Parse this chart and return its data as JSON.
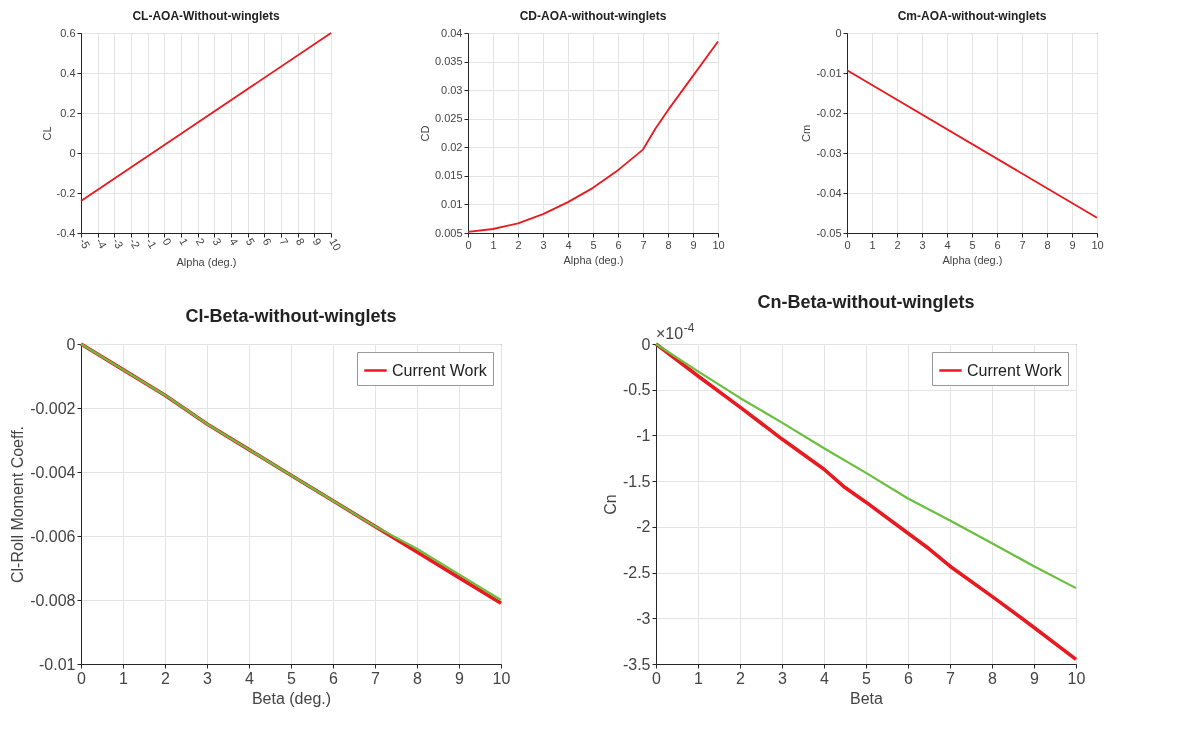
{
  "chart_data": [
    {
      "type": "line",
      "title": "CL-AOA-Without-winglets",
      "xlabel": "Alpha (deg.)",
      "ylabel": "CL",
      "x": [
        -5,
        0,
        10
      ],
      "values": [
        -0.24,
        0.04,
        0.6
      ],
      "color": "#e8191f",
      "xlim": [
        -5,
        10
      ],
      "xticks": [
        -5,
        -4,
        -3,
        -2,
        -1,
        0,
        1,
        2,
        3,
        4,
        5,
        6,
        7,
        8,
        9,
        10
      ],
      "ylim": [
        -0.4,
        0.6
      ],
      "yticks": [
        -0.4,
        -0.2,
        0,
        0.2,
        0.4,
        0.6
      ],
      "grid": true
    },
    {
      "type": "line",
      "title": "CD-AOA-without-winglets",
      "xlabel": "Alpha (deg.)",
      "ylabel": "CD",
      "x": [
        0,
        1,
        2,
        3,
        4,
        5,
        6,
        7,
        7.5,
        8,
        9,
        10
      ],
      "values": [
        0.0052,
        0.0057,
        0.0067,
        0.0083,
        0.0104,
        0.0129,
        0.016,
        0.0196,
        0.0233,
        0.0265,
        0.0325,
        0.0385
      ],
      "color": "#e8191f",
      "xlim": [
        0,
        10
      ],
      "xticks": [
        0,
        1,
        2,
        3,
        4,
        5,
        6,
        7,
        8,
        9,
        10
      ],
      "ylim": [
        0.005,
        0.04
      ],
      "yticks": [
        0.005,
        0.01,
        0.015,
        0.02,
        0.025,
        0.03,
        0.035,
        0.04
      ],
      "grid": true
    },
    {
      "type": "line",
      "title": "Cm-AOA-without-winglets",
      "xlabel": "Alpha (deg.)",
      "ylabel": "Cm",
      "x": [
        0,
        10
      ],
      "values": [
        -0.0093,
        -0.0462
      ],
      "color": "#e8191f",
      "xlim": [
        0,
        10
      ],
      "xticks": [
        0,
        1,
        2,
        3,
        4,
        5,
        6,
        7,
        8,
        9,
        10
      ],
      "ylim": [
        -0.05,
        0
      ],
      "yticks": [
        -0.05,
        -0.04,
        -0.03,
        -0.02,
        -0.01,
        0
      ],
      "grid": true
    },
    {
      "type": "line",
      "title": "Cl-Beta-without-winglets",
      "xlabel": "Beta (deg.)",
      "ylabel": "Cl-Roll Moment Coeff.",
      "x": [
        0,
        1,
        2,
        3,
        4,
        5,
        6,
        7,
        8,
        9,
        10
      ],
      "series": [
        {
          "name": "Current Work",
          "color": "#e8191f",
          "values": [
            0,
            -0.0008,
            -0.0016,
            -0.0025,
            -0.0033,
            -0.0041,
            -0.0049,
            -0.0057,
            -0.0065,
            -0.0073,
            -0.0081
          ]
        },
        {
          "color": "#6abf3f",
          "values": [
            0,
            -0.0008,
            -0.0016,
            -0.0025,
            -0.0033,
            -0.0041,
            -0.0049,
            -0.0057,
            -0.0064,
            -0.0072,
            -0.008
          ]
        }
      ],
      "xlim": [
        0,
        10
      ],
      "xticks": [
        0,
        1,
        2,
        3,
        4,
        5,
        6,
        7,
        8,
        9,
        10
      ],
      "ylim": [
        -0.01,
        0
      ],
      "yticks": [
        -0.01,
        -0.008,
        -0.006,
        -0.004,
        -0.002,
        0
      ],
      "grid": true,
      "legend": "top right"
    },
    {
      "type": "line",
      "title": "Cn-Beta-without-winglets",
      "xlabel": "Beta",
      "ylabel": "Cn",
      "annotations": [
        "×10$^{-4}$"
      ],
      "series": [
        {
          "name": "Current Work",
          "color": "#e8191f",
          "x": [
            0,
            1,
            2,
            3,
            4,
            4.5,
            5,
            6,
            6.5,
            7,
            8,
            9,
            10
          ],
          "values": [
            0,
            -0.35,
            -0.69,
            -1.04,
            -1.37,
            -1.57,
            -1.73,
            -2.07,
            -2.24,
            -2.43,
            -2.76,
            -3.1,
            -3.45
          ]
        },
        {
          "color": "#6abf3f",
          "x": [
            0,
            1,
            2,
            3,
            4,
            5,
            6,
            7,
            8,
            9,
            10
          ],
          "values": [
            0,
            -0.3,
            -0.59,
            -0.86,
            -1.14,
            -1.41,
            -1.69,
            -1.93,
            -2.18,
            -2.43,
            -2.67
          ]
        }
      ],
      "xlim": [
        0,
        10
      ],
      "xticks": [
        0,
        1,
        2,
        3,
        4,
        5,
        6,
        7,
        8,
        9,
        10
      ],
      "ylim": [
        -3.5,
        0
      ],
      "yticks": [
        -3.5,
        -3,
        -2.5,
        -2,
        -1.5,
        -1,
        -0.5,
        0
      ],
      "grid": true,
      "legend": "top right"
    }
  ]
}
